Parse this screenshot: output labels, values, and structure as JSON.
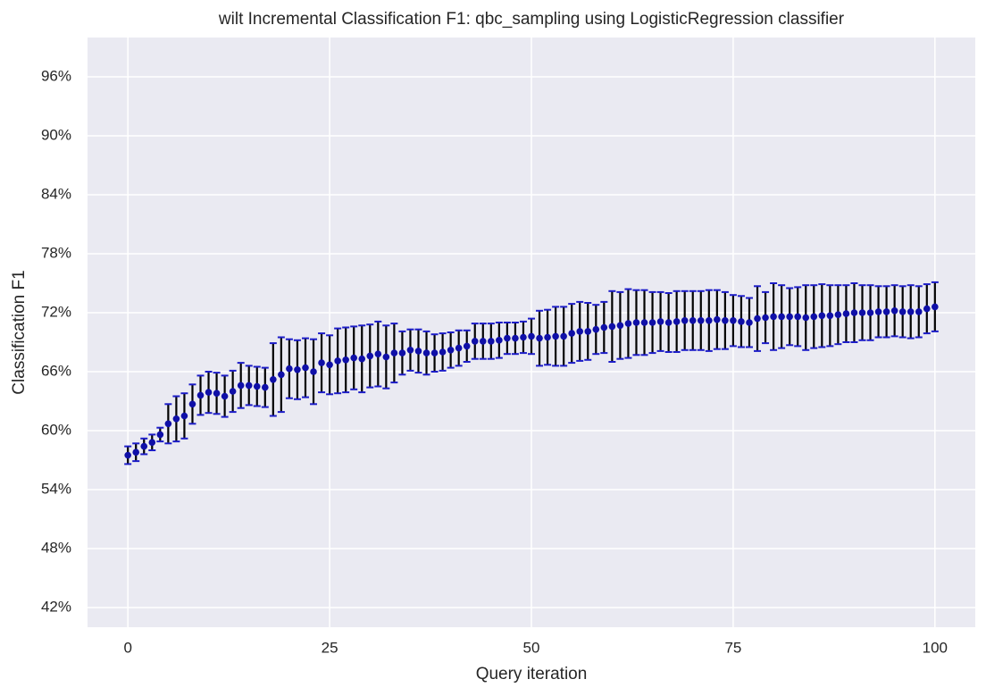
{
  "chart_data": {
    "type": "errorbar",
    "title": "wilt Incremental Classification F1: qbc_sampling using LogisticRegression classifier",
    "xlabel": "Query iteration",
    "ylabel": "Classification F1",
    "x": [
      0,
      1,
      2,
      3,
      4,
      5,
      6,
      7,
      8,
      9,
      10,
      11,
      12,
      13,
      14,
      15,
      16,
      17,
      18,
      19,
      20,
      21,
      22,
      23,
      24,
      25,
      26,
      27,
      28,
      29,
      30,
      31,
      32,
      33,
      34,
      35,
      36,
      37,
      38,
      39,
      40,
      41,
      42,
      43,
      44,
      45,
      46,
      47,
      48,
      49,
      50,
      51,
      52,
      53,
      54,
      55,
      56,
      57,
      58,
      59,
      60,
      61,
      62,
      63,
      64,
      65,
      66,
      67,
      68,
      69,
      70,
      71,
      72,
      73,
      74,
      75,
      76,
      77,
      78,
      79,
      80,
      81,
      82,
      83,
      84,
      85,
      86,
      87,
      88,
      89,
      90,
      91,
      92,
      93,
      94,
      95,
      96,
      97,
      98,
      99,
      100
    ],
    "values": [
      57.5,
      57.8,
      58.4,
      58.8,
      59.6,
      60.7,
      61.2,
      61.5,
      62.7,
      63.6,
      63.9,
      63.8,
      63.5,
      64.0,
      64.6,
      64.6,
      64.5,
      64.4,
      65.2,
      65.7,
      66.3,
      66.2,
      66.4,
      66.0,
      66.9,
      66.7,
      67.1,
      67.2,
      67.4,
      67.3,
      67.6,
      67.8,
      67.5,
      67.9,
      67.9,
      68.2,
      68.1,
      67.9,
      67.9,
      68.0,
      68.2,
      68.4,
      68.6,
      69.1,
      69.1,
      69.1,
      69.2,
      69.4,
      69.4,
      69.5,
      69.6,
      69.4,
      69.5,
      69.6,
      69.6,
      69.9,
      70.1,
      70.1,
      70.3,
      70.5,
      70.6,
      70.7,
      70.9,
      71.0,
      71.0,
      71.0,
      71.1,
      71.0,
      71.1,
      71.2,
      71.2,
      71.2,
      71.2,
      71.3,
      71.2,
      71.2,
      71.1,
      71.0,
      71.4,
      71.5,
      71.6,
      71.6,
      71.6,
      71.6,
      71.5,
      71.6,
      71.7,
      71.7,
      71.8,
      71.9,
      72.0,
      72.0,
      72.0,
      72.1,
      72.1,
      72.2,
      72.1,
      72.1,
      72.1,
      72.4,
      72.6
    ],
    "errors": [
      0.9,
      0.9,
      0.8,
      0.8,
      0.7,
      2.0,
      2.3,
      2.3,
      2.0,
      2.0,
      2.1,
      2.1,
      2.1,
      2.1,
      2.3,
      2.0,
      2.0,
      2.0,
      3.7,
      3.8,
      3.0,
      3.0,
      3.0,
      3.3,
      3.0,
      3.0,
      3.3,
      3.3,
      3.2,
      3.4,
      3.2,
      3.3,
      3.2,
      3.0,
      2.2,
      2.1,
      2.2,
      2.2,
      1.9,
      1.9,
      1.8,
      1.8,
      1.6,
      1.8,
      1.8,
      1.8,
      1.8,
      1.6,
      1.6,
      1.6,
      1.8,
      2.8,
      2.8,
      3.0,
      3.0,
      3.0,
      3.0,
      2.9,
      2.5,
      2.6,
      3.6,
      3.4,
      3.5,
      3.3,
      3.3,
      3.1,
      3.0,
      3.0,
      3.1,
      3.0,
      3.0,
      3.0,
      3.1,
      3.0,
      2.9,
      2.6,
      2.6,
      2.5,
      3.3,
      2.6,
      3.4,
      3.2,
      2.9,
      3.0,
      3.3,
      3.2,
      3.2,
      3.1,
      3.0,
      2.9,
      3.0,
      2.8,
      2.8,
      2.6,
      2.6,
      2.6,
      2.6,
      2.7,
      2.6,
      2.5,
      2.5
    ],
    "color": "#0f0fa8",
    "error_color": "#000000",
    "cap_color": "#1c1cc8",
    "xlim": [
      -5,
      105
    ],
    "xticks": [
      0,
      25,
      50,
      75,
      100
    ],
    "ylim": [
      40,
      100
    ],
    "yticks": [
      {
        "value": 42,
        "label": "42%"
      },
      {
        "value": 48,
        "label": "48%"
      },
      {
        "value": 54,
        "label": "54%"
      },
      {
        "value": 60,
        "label": "60%"
      },
      {
        "value": 66,
        "label": "66%"
      },
      {
        "value": 72,
        "label": "72%"
      },
      {
        "value": 78,
        "label": "78%"
      },
      {
        "value": 84,
        "label": "84%"
      },
      {
        "value": 90,
        "label": "90%"
      },
      {
        "value": 96,
        "label": "96%"
      }
    ],
    "grid": true
  }
}
